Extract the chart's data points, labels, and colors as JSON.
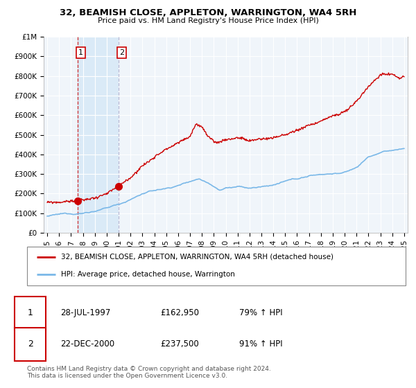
{
  "title_line1": "32, BEAMISH CLOSE, APPLETON, WARRINGTON, WA4 5RH",
  "title_line2": "Price paid vs. HM Land Registry's House Price Index (HPI)",
  "ylim": [
    0,
    1000000
  ],
  "yticks": [
    0,
    100000,
    200000,
    300000,
    400000,
    500000,
    600000,
    700000,
    800000,
    900000,
    1000000
  ],
  "ytick_labels": [
    "£0",
    "£100K",
    "£200K",
    "£300K",
    "£400K",
    "£500K",
    "£600K",
    "£700K",
    "£800K",
    "£900K",
    "£1M"
  ],
  "xlim_start": 1994.7,
  "xlim_end": 2025.3,
  "hpi_color": "#7ab8e8",
  "price_color": "#cc0000",
  "shade_color": "#daeaf7",
  "dashed_line_color": "#cc0000",
  "dashed2_color": "#aaaacc",
  "background_color": "#f0f5fa",
  "grid_color": "#ffffff",
  "purchase1_date": 1997.57,
  "purchase1_price": 162950,
  "purchase1_label": "1",
  "purchase2_date": 2001.0,
  "purchase2_price": 237500,
  "purchase2_label": "2",
  "legend_line1": "32, BEAMISH CLOSE, APPLETON, WARRINGTON, WA4 5RH (detached house)",
  "legend_line2": "HPI: Average price, detached house, Warrington",
  "table_row1": [
    "1",
    "28-JUL-1997",
    "£162,950",
    "79% ↑ HPI"
  ],
  "table_row2": [
    "2",
    "22-DEC-2000",
    "£237,500",
    "91% ↑ HPI"
  ],
  "footer": "Contains HM Land Registry data © Crown copyright and database right 2024.\nThis data is licensed under the Open Government Licence v3.0.",
  "xtick_years": [
    1995,
    1996,
    1997,
    1998,
    1999,
    2000,
    2001,
    2002,
    2003,
    2004,
    2005,
    2006,
    2007,
    2008,
    2009,
    2010,
    2011,
    2012,
    2013,
    2014,
    2015,
    2016,
    2017,
    2018,
    2019,
    2020,
    2021,
    2022,
    2023,
    2024,
    2025
  ]
}
